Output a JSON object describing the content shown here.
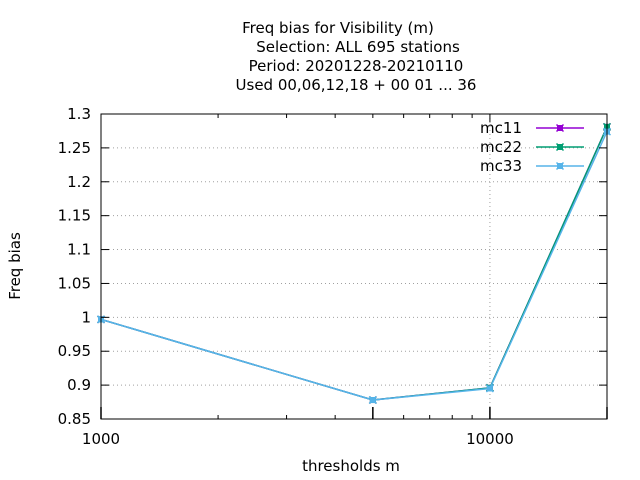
{
  "chart_data": {
    "type": "line",
    "title_lines": [
      "Freq bias  for Visibility (m)",
      "Selection: ALL    695 stations",
      "Period: 20201228-20210110",
      "Used  00,06,12,18 + 00 01 ... 36"
    ],
    "xlabel": "thresholds m",
    "ylabel": "Freq bias",
    "x_scale": "log",
    "xlim": [
      1000,
      20000
    ],
    "ylim": [
      0.85,
      1.3
    ],
    "x_ticks": [
      1000,
      10000
    ],
    "x_tick_labels": [
      "1000",
      "10000"
    ],
    "y_ticks": [
      0.85,
      0.9,
      0.95,
      1,
      1.05,
      1.1,
      1.15,
      1.2,
      1.25,
      1.3
    ],
    "y_tick_labels": [
      "0.85",
      "0.9",
      "0.95",
      "1",
      "1.05",
      "1.1",
      "1.15",
      "1.2",
      "1.25",
      "1.3"
    ],
    "grid": true,
    "legend_position": "top-right",
    "x": [
      1000,
      5000,
      10000,
      20000
    ],
    "series": [
      {
        "name": "mc11",
        "color": "#9400d3",
        "values": [
          0.997,
          0.878,
          0.896,
          1.281
        ]
      },
      {
        "name": "mc22",
        "color": "#009e73",
        "values": [
          0.997,
          0.878,
          0.896,
          1.281
        ]
      },
      {
        "name": "mc33",
        "color": "#56b4e9",
        "values": [
          0.997,
          0.878,
          0.895,
          1.274
        ]
      }
    ]
  }
}
